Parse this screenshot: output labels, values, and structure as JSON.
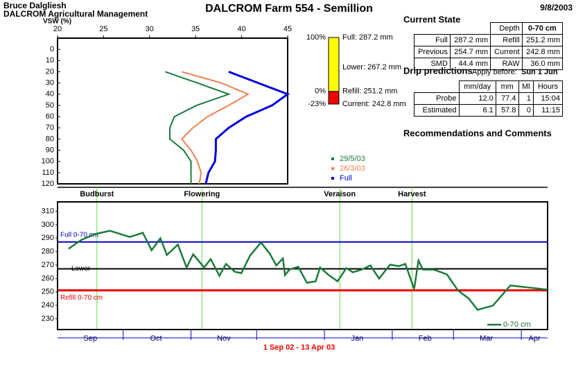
{
  "header": {
    "user": "Bruce Dalgliesh",
    "organisation": "DALCROM Agricultural Management",
    "title": "DALCROM Farm 554 - Semillion",
    "date": "9/8/2003"
  },
  "current_state": {
    "title": "Current State",
    "depth_label": "Depth",
    "depth": "0-70 cm",
    "rows": [
      [
        "Full",
        "287.2 mm",
        "Refill",
        "251.2 mm"
      ],
      [
        "Previous",
        "254.7 mm",
        "Current",
        "242.8 mm"
      ],
      [
        "SMD",
        "44.4 mm",
        "RAW",
        "36.0 mm"
      ]
    ]
  },
  "drip_predictions": {
    "title": "Drip predictions",
    "apply_label": "Apply before:",
    "apply_date": "Sun 1 Jun",
    "columns": [
      "mm/day",
      "mm",
      "Ml",
      "Hours"
    ],
    "rows": [
      [
        "Probe",
        "12.0",
        "77.4",
        "1",
        "15:04"
      ],
      [
        "Estimated",
        "6.1",
        "57.8",
        "0",
        "11:15"
      ]
    ]
  },
  "recommendations": {
    "title": "Recommendations and Comments"
  },
  "chart_data": [
    {
      "type": "profile",
      "xlabel": "VSW (%)",
      "xlim": [
        20,
        45
      ],
      "xticks": [
        20,
        25,
        30,
        35,
        40,
        45
      ],
      "ylim": [
        -10,
        120
      ],
      "yticks": [
        0,
        10,
        20,
        30,
        40,
        50,
        60,
        70,
        80,
        90,
        100,
        110,
        120
      ],
      "y": [
        20,
        30,
        40,
        50,
        60,
        70,
        80,
        90,
        100,
        110,
        120
      ],
      "series": [
        {
          "name": "29/5/03",
          "color": "#1a7a3a",
          "values": [
            31.7,
            35.2,
            38.6,
            35.1,
            32.7,
            32.2,
            32.2,
            33.7,
            34.5,
            34.5,
            34.5
          ]
        },
        {
          "name": "26/3/03",
          "color": "#f08050",
          "values": [
            33.5,
            37.8,
            40.7,
            38.6,
            36.3,
            34.7,
            33.5,
            34.5,
            35.2,
            35.6,
            35.4
          ]
        },
        {
          "name": "Full",
          "color": "#0000dd",
          "values": [
            38.6,
            41.8,
            45,
            43.3,
            40.5,
            38.6,
            37.2,
            37.2,
            37.1,
            36.4,
            36.1
          ]
        }
      ]
    },
    {
      "type": "gauge",
      "ylim": [
        242.8,
        287.2
      ],
      "yticks": [
        {
          "value": 287.2,
          "label": "100%"
        },
        {
          "value": 251.2,
          "label": "0%"
        },
        {
          "value": 242.8,
          "label": "-23%"
        }
      ],
      "levels": [
        {
          "label": "Full: 287.2 mm",
          "value": 287.2
        },
        {
          "label": "Lower: 267.2 mm",
          "value": 267.2
        },
        {
          "label": "Refill: 251.2 mm",
          "value": 251.2
        },
        {
          "label": "Current: 242.8 mm",
          "value": 242.8
        }
      ],
      "colors": [
        "#ffff00",
        "#ee0000"
      ]
    },
    {
      "type": "line",
      "xlabel": "1 Sep 02 - 13 Apr 03",
      "xlim": [
        0,
        224
      ],
      "xticks": [
        {
          "value": 15,
          "label": "Sep"
        },
        {
          "value": 45,
          "label": "Oct"
        },
        {
          "value": 76,
          "label": "Nov"
        },
        {
          "value": 137,
          "label": "Jan"
        },
        {
          "value": 168,
          "label": "Feb"
        },
        {
          "value": 196,
          "label": "Mar"
        },
        {
          "value": 218,
          "label": "Apr"
        }
      ],
      "xminor": [
        30,
        61,
        91,
        122,
        153,
        181,
        212
      ],
      "ylim": [
        222,
        317
      ],
      "yticks": [
        230,
        240,
        250,
        260,
        270,
        280,
        290,
        300,
        310
      ],
      "stages": [
        {
          "label": "Budburst",
          "x": 18
        },
        {
          "label": "Flowering",
          "x": 66
        },
        {
          "label": "Veraison",
          "x": 129
        },
        {
          "label": "Harvest",
          "x": 162
        }
      ],
      "reference_lines": [
        {
          "label": "Full 0-70 cm",
          "value": 287.2,
          "color": "#0000cc"
        },
        {
          "label": "Lower",
          "value": 267.2,
          "color": "#000000"
        },
        {
          "label": "Refill 0-70 cm",
          "value": 251.2,
          "color": "#ee0000"
        }
      ],
      "series": [
        {
          "name": "0-70 cm",
          "color": "#1a7a3a",
          "x": [
            5,
            11,
            17,
            24,
            33,
            39,
            43,
            47,
            50,
            55,
            59,
            62,
            67,
            70,
            74,
            77,
            81,
            84,
            88,
            93,
            97,
            100,
            103,
            104,
            106,
            110,
            114,
            118,
            120,
            124,
            128,
            132,
            135,
            139,
            143,
            147,
            152,
            156,
            159,
            163,
            165,
            167,
            172,
            178,
            183,
            188,
            192,
            199,
            207,
            224
          ],
          "values": [
            282.1,
            288.8,
            293,
            295.5,
            290.9,
            294,
            281,
            289.9,
            277.5,
            285.2,
            268.2,
            278,
            268.2,
            274.4,
            262,
            270.8,
            265,
            264,
            277,
            286.8,
            278.5,
            269.7,
            274.9,
            262.5,
            266.6,
            268.7,
            256.8,
            257.9,
            268.2,
            262.5,
            257.9,
            267.7,
            264.6,
            266.6,
            269.7,
            259.9,
            270.3,
            269.2,
            270.8,
            252.2,
            273.3,
            266.6,
            266.6,
            263,
            251.2,
            245,
            236.7,
            239.8,
            254.8,
            251.7
          ]
        }
      ]
    }
  ]
}
